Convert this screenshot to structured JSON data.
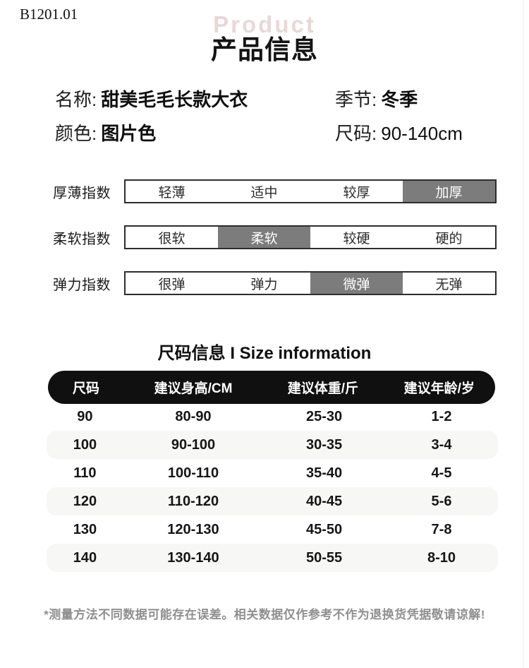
{
  "page": {
    "code": "B1201.01",
    "watermark": "Product",
    "title": "产品信息"
  },
  "product_info": {
    "fields": [
      {
        "label": "名称:",
        "value": "甜美毛毛长款大衣",
        "bold": true
      },
      {
        "label": "季节:",
        "value": "冬季",
        "bold": true
      },
      {
        "label": "颜色:",
        "value": "图片色",
        "bold": true
      },
      {
        "label": "尺码:",
        "value": "90-140cm",
        "bold": false
      }
    ]
  },
  "index_bars": [
    {
      "label": "厚薄指数",
      "options": [
        "轻薄",
        "适中",
        "较厚",
        "加厚"
      ],
      "selected": 3
    },
    {
      "label": "柔软指数",
      "options": [
        "很软",
        "柔软",
        "较硬",
        "硬的"
      ],
      "selected": 1
    },
    {
      "label": "弹力指数",
      "options": [
        "很弹",
        "弹力",
        "微弹",
        "无弹"
      ],
      "selected": 2
    }
  ],
  "size_section": {
    "title": "尺码信息 I Size information",
    "table": {
      "headers": [
        "尺码",
        "建议身高/CM",
        "建议体重/斤",
        "建议年龄/岁"
      ],
      "rows": [
        [
          "90",
          "80-90",
          "25-30",
          "1-2"
        ],
        [
          "100",
          "90-100",
          "30-35",
          "3-4"
        ],
        [
          "110",
          "100-110",
          "35-40",
          "4-5"
        ],
        [
          "120",
          "110-120",
          "40-45",
          "5-6"
        ],
        [
          "130",
          "120-130",
          "45-50",
          "7-8"
        ],
        [
          "140",
          "130-140",
          "50-55",
          "8-10"
        ]
      ]
    }
  },
  "footer_note": "*测量方法不同数据可能存在误差。相关数据仅作参考不作为退换货凭据敬请谅解!",
  "colors": {
    "highlight_gray": "#7c7c7c",
    "header_black": "#101010",
    "stripe_gray": "#f7f7f5",
    "watermark_pink": "#ead7d7",
    "note_gray": "#8f8f8f"
  }
}
